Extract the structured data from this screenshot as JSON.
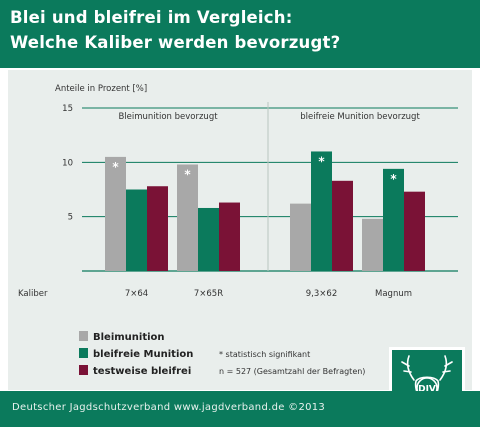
{
  "title": {
    "line1": "Blei und bleifrei im Vergleich:",
    "line2": "Welche Kaliber werden bevorzugt?"
  },
  "footer": {
    "text": "Deutscher Jagdschutzverband   www.jagdverband.de  ©2013"
  },
  "logo": {
    "text": "DJV"
  },
  "colors": {
    "header": "#0b7a5c",
    "panel": "#e9eeec",
    "blei": "#a8a8a8",
    "bleifrei": "#0b7a5c",
    "testweise": "#7a1236"
  },
  "chart_data": {
    "type": "bar",
    "ylabel": "Anteile in Prozent [%]",
    "xlabel": "Kaliber",
    "ylim": [
      0,
      15
    ],
    "yticks": [
      5,
      10,
      15
    ],
    "grid": true,
    "group_labels": [
      "Bleimunition bevorzugt",
      "bleifreie Munition bevorzugt"
    ],
    "categories": [
      "7×64",
      "7×65R",
      "9,3×62",
      "Magnum"
    ],
    "series": [
      {
        "name": "Bleimunition",
        "color": "#a8a8a8",
        "values": [
          10.5,
          9.8,
          6.2,
          4.8
        ],
        "significant": [
          true,
          true,
          false,
          false
        ]
      },
      {
        "name": "bleifreie Munition",
        "color": "#0b7a5c",
        "values": [
          7.5,
          5.8,
          11.0,
          9.4
        ],
        "significant": [
          false,
          false,
          true,
          true
        ]
      },
      {
        "name": "testweise bleifrei",
        "color": "#7a1236",
        "values": [
          7.8,
          6.3,
          8.3,
          7.3
        ],
        "significant": [
          false,
          false,
          false,
          false
        ]
      }
    ],
    "significance_marker": "*",
    "notes": [
      "* statistisch signifikant",
      "n = 527 (Gesamtzahl der Befragten)"
    ]
  }
}
